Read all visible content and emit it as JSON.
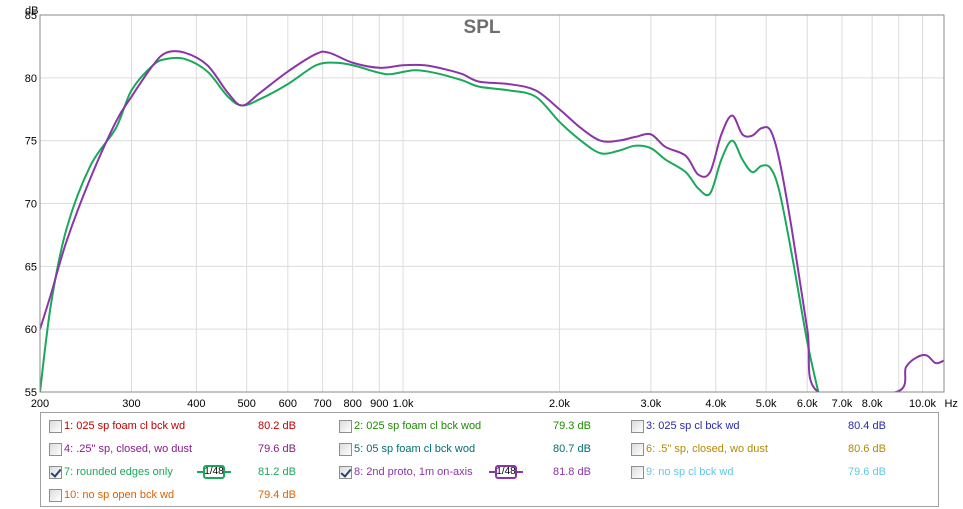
{
  "chart_data": {
    "type": "line",
    "title": "SPL",
    "ylabel": "dB",
    "xunit": "Hz",
    "xscale": "log",
    "xlim": [
      200,
      11000
    ],
    "ylim": [
      55,
      85
    ],
    "grid": true,
    "yticks": [
      "85",
      "80",
      "75",
      "70",
      "65",
      "60",
      "55"
    ],
    "yticks_values": [
      85,
      80,
      75,
      70,
      65,
      60,
      55
    ],
    "xticks": [
      {
        "v": 200,
        "label": "200"
      },
      {
        "v": 300,
        "label": "300"
      },
      {
        "v": 400,
        "label": "400"
      },
      {
        "v": 500,
        "label": "500"
      },
      {
        "v": 600,
        "label": "600"
      },
      {
        "v": 700,
        "label": "700"
      },
      {
        "v": 800,
        "label": "800"
      },
      {
        "v": 900,
        "label": "900"
      },
      {
        "v": 1000,
        "label": "1.0k"
      },
      {
        "v": 2000,
        "label": "2.0k"
      },
      {
        "v": 3000,
        "label": "3.0k"
      },
      {
        "v": 4000,
        "label": "4.0k"
      },
      {
        "v": 5000,
        "label": "5.0k"
      },
      {
        "v": 6000,
        "label": "6.0k"
      },
      {
        "v": 7000,
        "label": "7.0k"
      },
      {
        "v": 8000,
        "label": "8.0k"
      },
      {
        "v": 10000,
        "label": "10.0k"
      }
    ],
    "xtick_unit_label": "Hz",
    "series": [
      {
        "name": "7: rounded edges only",
        "color": "#1aa85a",
        "points": [
          [
            200,
            55
          ],
          [
            210,
            62
          ],
          [
            225,
            68
          ],
          [
            250,
            73
          ],
          [
            280,
            76
          ],
          [
            300,
            79
          ],
          [
            330,
            81
          ],
          [
            350,
            81.5
          ],
          [
            380,
            81.5
          ],
          [
            420,
            80.5
          ],
          [
            460,
            78.5
          ],
          [
            490,
            77.8
          ],
          [
            530,
            78.3
          ],
          [
            600,
            79.5
          ],
          [
            680,
            81
          ],
          [
            740,
            81.2
          ],
          [
            800,
            81
          ],
          [
            900,
            80.4
          ],
          [
            950,
            80.3
          ],
          [
            1050,
            80.6
          ],
          [
            1150,
            80.4
          ],
          [
            1300,
            79.8
          ],
          [
            1400,
            79.3
          ],
          [
            1600,
            79
          ],
          [
            1800,
            78.5
          ],
          [
            2000,
            76.5
          ],
          [
            2200,
            75
          ],
          [
            2400,
            74
          ],
          [
            2600,
            74.2
          ],
          [
            2800,
            74.6
          ],
          [
            3000,
            74.4
          ],
          [
            3200,
            73.5
          ],
          [
            3500,
            72.5
          ],
          [
            3700,
            71.2
          ],
          [
            3900,
            70.8
          ],
          [
            4100,
            73.5
          ],
          [
            4300,
            75
          ],
          [
            4500,
            73.5
          ],
          [
            4700,
            72.5
          ],
          [
            4900,
            73
          ],
          [
            5100,
            72.8
          ],
          [
            5300,
            71
          ],
          [
            5600,
            66
          ],
          [
            6000,
            59
          ],
          [
            6300,
            55
          ]
        ]
      },
      {
        "name": "8: 2nd proto, 1m on-axis",
        "color": "#8a35a8",
        "points": [
          [
            200,
            60
          ],
          [
            210,
            62.8
          ],
          [
            225,
            67
          ],
          [
            250,
            72
          ],
          [
            280,
            76.5
          ],
          [
            300,
            78.5
          ],
          [
            330,
            81
          ],
          [
            350,
            82
          ],
          [
            380,
            82
          ],
          [
            420,
            81
          ],
          [
            460,
            78.8
          ],
          [
            490,
            77.8
          ],
          [
            530,
            78.8
          ],
          [
            600,
            80.5
          ],
          [
            680,
            81.9
          ],
          [
            720,
            82
          ],
          [
            800,
            81.2
          ],
          [
            900,
            80.8
          ],
          [
            1000,
            81
          ],
          [
            1100,
            81
          ],
          [
            1200,
            80.7
          ],
          [
            1300,
            80.3
          ],
          [
            1400,
            79.7
          ],
          [
            1600,
            79.5
          ],
          [
            1800,
            79
          ],
          [
            2000,
            77.5
          ],
          [
            2200,
            76
          ],
          [
            2400,
            75
          ],
          [
            2600,
            75
          ],
          [
            2800,
            75.3
          ],
          [
            3000,
            75.5
          ],
          [
            3200,
            74.5
          ],
          [
            3500,
            73.8
          ],
          [
            3700,
            72.3
          ],
          [
            3900,
            72.5
          ],
          [
            4100,
            75.5
          ],
          [
            4300,
            77
          ],
          [
            4500,
            75.5
          ],
          [
            4700,
            75.4
          ],
          [
            4900,
            76
          ],
          [
            5100,
            75.8
          ],
          [
            5300,
            73.5
          ],
          [
            5600,
            68
          ],
          [
            6000,
            60
          ],
          [
            6300,
            55
          ],
          [
            8900,
            55
          ],
          [
            9300,
            57
          ],
          [
            9800,
            57.8
          ],
          [
            10200,
            57.9
          ],
          [
            10600,
            57.3
          ],
          [
            11000,
            57.5
          ]
        ]
      }
    ]
  },
  "legend": {
    "items": [
      {
        "label": "1: 025 sp foam cl bck wd",
        "value": "80.2 dB",
        "color": "#c00000",
        "checked": false
      },
      {
        "label": "2: 025 sp foam cl bck wod",
        "value": "79.3 dB",
        "color": "#1e8a00",
        "checked": false
      },
      {
        "label": "3: 025 sp cl bck wd",
        "value": "80.4 dB",
        "color": "#2a2aa5",
        "checked": false
      },
      {
        "label": "4: .25\" sp, closed, wo dust",
        "value": "79.6 dB",
        "color": "#8b1a8b",
        "checked": false
      },
      {
        "label": "5: 05 sp foam cl bck wod",
        "value": "80.7 dB",
        "color": "#007070",
        "checked": false
      },
      {
        "label": "6: .5\" sp, closed, wo dust",
        "value": "80.6 dB",
        "color": "#b08a00",
        "checked": false
      },
      {
        "label": "7: rounded edges only",
        "value": "81.2 dB",
        "color": "#1aa85a",
        "checked": true,
        "smoothing": "1/48"
      },
      {
        "label": "8: 2nd proto, 1m on-axis",
        "value": "81.8 dB",
        "color": "#8a35a8",
        "checked": true,
        "smoothing": "1/48"
      },
      {
        "label": "9: no sp cl bck wd",
        "value": "79.6 dB",
        "color": "#5fc8e6",
        "checked": false
      },
      {
        "label": "10: no sp open bck wd",
        "value": "79.4 dB",
        "color": "#e06000",
        "checked": false
      }
    ]
  }
}
